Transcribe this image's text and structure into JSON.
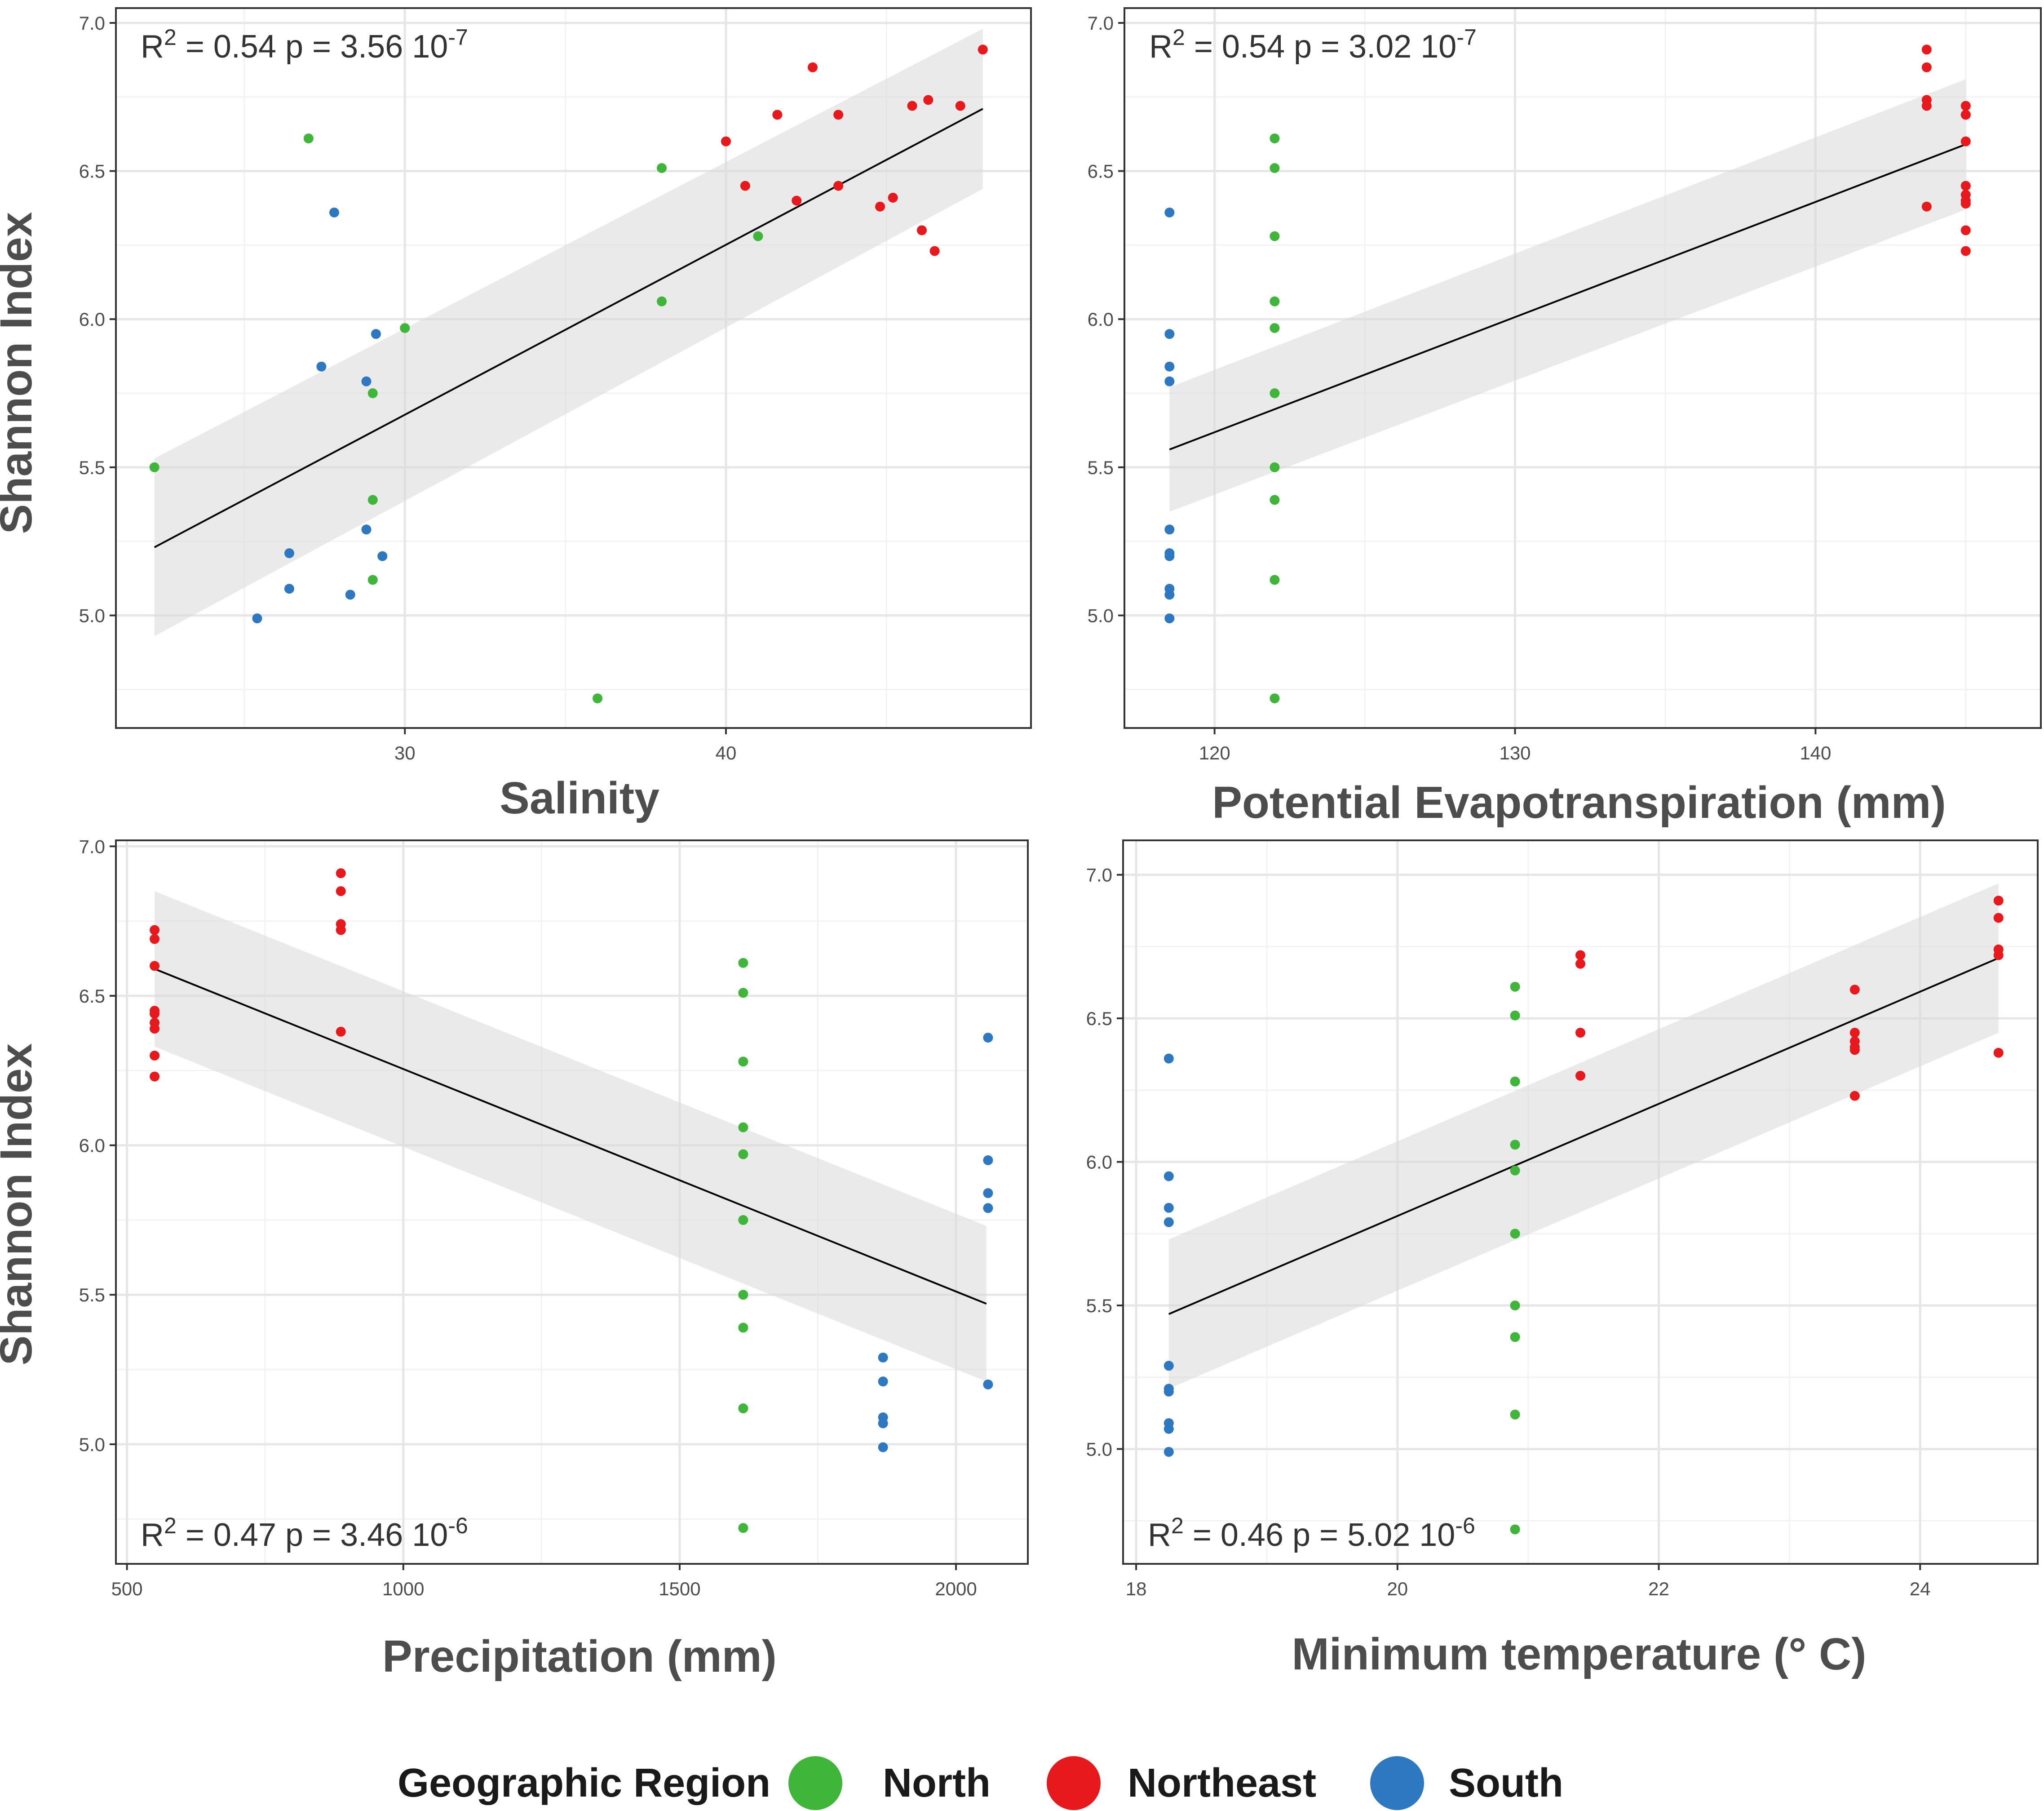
{
  "legend": {
    "title": "Geographic Region",
    "entries": [
      {
        "label": "North",
        "color": "#3fb63a"
      },
      {
        "label": "Northeast",
        "color": "#e8191c"
      },
      {
        "label": "South",
        "color": "#2e78c2"
      }
    ]
  },
  "chart_data": [
    {
      "type": "scatter",
      "id": "salinity",
      "xlabel": "Salinity",
      "ylabel": "Shannon Index",
      "xlim": [
        21,
        49.5
      ],
      "ylim": [
        4.62,
        7.05
      ],
      "xticks": [
        30,
        40
      ],
      "yticks": [
        5.0,
        5.5,
        6.0,
        6.5,
        7.0
      ],
      "ytick_labels": [
        "5.0",
        "5.5",
        "6.0",
        "6.5",
        "7.0"
      ],
      "annotation": {
        "r2_prefix": "R",
        "r2_sup": "2",
        "text_main": " = 0.54 p = 3.56 10",
        "exp": "-7"
      },
      "annotation_pos": "top-left",
      "fit": {
        "x": [
          22.2,
          48
        ],
        "y": [
          5.23,
          6.71
        ],
        "ci_low_start": 4.93,
        "ci_high_start": 5.53,
        "ci_low_end": 6.44,
        "ci_high_end": 6.98
      },
      "series": [
        {
          "name": "North",
          "x": [
            27,
            38,
            38,
            41,
            30,
            29,
            29,
            22.2,
            29,
            36
          ],
          "y": [
            6.61,
            6.51,
            6.06,
            6.28,
            5.97,
            5.75,
            5.39,
            5.5,
            5.12,
            4.72
          ]
        },
        {
          "name": "Northeast",
          "x": [
            40,
            42.7,
            41.6,
            40.6,
            43.5,
            42.2,
            43.5,
            45.8,
            46.3,
            47.3,
            44.8,
            45.2,
            46.1,
            46.5,
            48
          ],
          "y": [
            6.6,
            6.85,
            6.69,
            6.45,
            6.69,
            6.4,
            6.45,
            6.72,
            6.74,
            6.72,
            6.38,
            6.41,
            6.3,
            6.23,
            6.91
          ]
        },
        {
          "name": "South",
          "x": [
            27.8,
            29.1,
            27.4,
            28.8,
            28.8,
            29.3,
            26.4,
            26.4,
            28.3,
            25.4
          ],
          "y": [
            6.36,
            5.95,
            5.84,
            5.79,
            5.29,
            5.2,
            5.21,
            5.09,
            5.07,
            4.99
          ]
        }
      ]
    },
    {
      "type": "scatter",
      "id": "pet",
      "xlabel": "Potential Evapotranspiration (mm)",
      "ylabel": "",
      "xlim": [
        117,
        147.5
      ],
      "ylim": [
        4.62,
        7.05
      ],
      "xticks": [
        120,
        130,
        140
      ],
      "yticks": [
        5.0,
        5.5,
        6.0,
        6.5,
        7.0
      ],
      "ytick_labels": [
        "5.0",
        "5.5",
        "6.0",
        "6.5",
        "7.0"
      ],
      "annotation": {
        "r2_prefix": "R",
        "r2_sup": "2",
        "text_main": " = 0.54 p = 3.02 10",
        "exp": "-7"
      },
      "annotation_pos": "top-left",
      "fit": {
        "x": [
          118.5,
          145
        ],
        "y": [
          5.56,
          6.59
        ],
        "ci_low_start": 5.35,
        "ci_high_start": 5.77,
        "ci_low_end": 6.37,
        "ci_high_end": 6.81
      },
      "series": [
        {
          "name": "North",
          "x": [
            122,
            122,
            122,
            122,
            122,
            122,
            122,
            122,
            122,
            122
          ],
          "y": [
            6.61,
            6.51,
            6.28,
            6.06,
            5.97,
            5.75,
            5.5,
            5.39,
            5.12,
            4.72
          ]
        },
        {
          "name": "Northeast",
          "x": [
            143.7,
            143.7,
            143.7,
            143.7,
            143.7,
            145,
            145,
            145,
            145,
            145,
            145,
            145,
            145,
            145,
            145
          ],
          "y": [
            6.91,
            6.85,
            6.74,
            6.72,
            6.38,
            6.72,
            6.69,
            6.69,
            6.6,
            6.45,
            6.42,
            6.4,
            6.39,
            6.3,
            6.23
          ]
        },
        {
          "name": "South",
          "x": [
            118.5,
            118.5,
            118.5,
            118.5,
            118.5,
            118.5,
            118.5,
            118.5,
            118.5,
            118.5
          ],
          "y": [
            6.36,
            5.95,
            5.84,
            5.79,
            5.29,
            5.21,
            5.2,
            5.09,
            5.07,
            4.99
          ]
        }
      ]
    },
    {
      "type": "scatter",
      "id": "precip",
      "xlabel": "Precipitation (mm)",
      "ylabel": "Shannon Index",
      "xlim": [
        480,
        2130
      ],
      "ylim": [
        4.6,
        7.02
      ],
      "xticks": [
        500,
        1000,
        1500,
        2000
      ],
      "yticks": [
        5.0,
        5.5,
        6.0,
        6.5,
        7.0
      ],
      "ytick_labels": [
        "5.0",
        "5.5",
        "6.0",
        "6.5",
        "7.0"
      ],
      "annotation": {
        "r2_prefix": "R",
        "r2_sup": "2",
        "text_main": " = 0.47 p = 3.46 10",
        "exp": "-6"
      },
      "annotation_pos": "bottom-left",
      "fit": {
        "x": [
          550,
          2055
        ],
        "y": [
          6.59,
          5.47
        ],
        "ci_low_start": 6.33,
        "ci_high_start": 6.85,
        "ci_low_end": 5.21,
        "ci_high_end": 5.73
      },
      "series": [
        {
          "name": "North",
          "x": [
            1615,
            1615,
            1615,
            1615,
            1615,
            1615,
            1615,
            1615,
            1615,
            1615
          ],
          "y": [
            6.61,
            6.51,
            6.28,
            6.06,
            5.97,
            5.75,
            5.5,
            5.39,
            5.12,
            4.72
          ]
        },
        {
          "name": "Northeast",
          "x": [
            550,
            550,
            550,
            550,
            550,
            550,
            550,
            550,
            550,
            887,
            887,
            887,
            887,
            887,
            887
          ],
          "y": [
            6.72,
            6.69,
            6.6,
            6.45,
            6.44,
            6.41,
            6.39,
            6.3,
            6.23,
            6.91,
            6.85,
            6.74,
            6.72,
            6.72,
            6.38
          ]
        },
        {
          "name": "South",
          "x": [
            2058,
            2058,
            2058,
            2058,
            2058,
            1868,
            1868,
            1868,
            1868,
            1868
          ],
          "y": [
            6.36,
            5.95,
            5.84,
            5.79,
            5.2,
            5.29,
            5.21,
            5.09,
            5.07,
            4.99
          ]
        }
      ]
    },
    {
      "type": "scatter",
      "id": "mintemp",
      "xlabel": "Minimum temperature (° C)",
      "ylabel": "",
      "xlim": [
        17.9,
        24.9
      ],
      "ylim": [
        4.6,
        7.12
      ],
      "xticks": [
        18,
        20,
        22,
        24
      ],
      "yticks": [
        5.0,
        5.5,
        6.0,
        6.5,
        7.0
      ],
      "ytick_labels": [
        "5.0",
        "5.5",
        "6.0",
        "6.5",
        "7.0"
      ],
      "annotation": {
        "r2_prefix": "R",
        "r2_sup": "2",
        "text_main": " = 0.46 p = 5.02 10",
        "exp": "-6"
      },
      "annotation_pos": "bottom-left",
      "fit": {
        "x": [
          18.25,
          24.6
        ],
        "y": [
          5.47,
          6.71
        ],
        "ci_low_start": 5.21,
        "ci_high_start": 5.73,
        "ci_low_end": 6.45,
        "ci_high_end": 6.97
      },
      "series": [
        {
          "name": "North",
          "x": [
            20.9,
            20.9,
            20.9,
            20.9,
            20.9,
            20.9,
            20.9,
            20.9,
            20.9,
            20.9
          ],
          "y": [
            6.61,
            6.51,
            6.28,
            6.06,
            5.97,
            5.75,
            5.5,
            5.39,
            5.12,
            4.72
          ]
        },
        {
          "name": "Northeast",
          "x": [
            21.4,
            21.4,
            21.4,
            21.4,
            23.5,
            23.5,
            23.5,
            23.5,
            23.5,
            23.5,
            24.6,
            24.6,
            24.6,
            24.6,
            24.6
          ],
          "y": [
            6.72,
            6.69,
            6.45,
            6.3,
            6.6,
            6.45,
            6.42,
            6.4,
            6.39,
            6.23,
            6.91,
            6.85,
            6.74,
            6.72,
            6.38
          ]
        },
        {
          "name": "South",
          "x": [
            18.25,
            18.25,
            18.25,
            18.25,
            18.25,
            18.25,
            18.25,
            18.25,
            18.25,
            18.25
          ],
          "y": [
            6.36,
            5.95,
            5.84,
            5.79,
            5.29,
            5.21,
            5.2,
            5.09,
            5.07,
            4.99
          ]
        }
      ]
    }
  ]
}
